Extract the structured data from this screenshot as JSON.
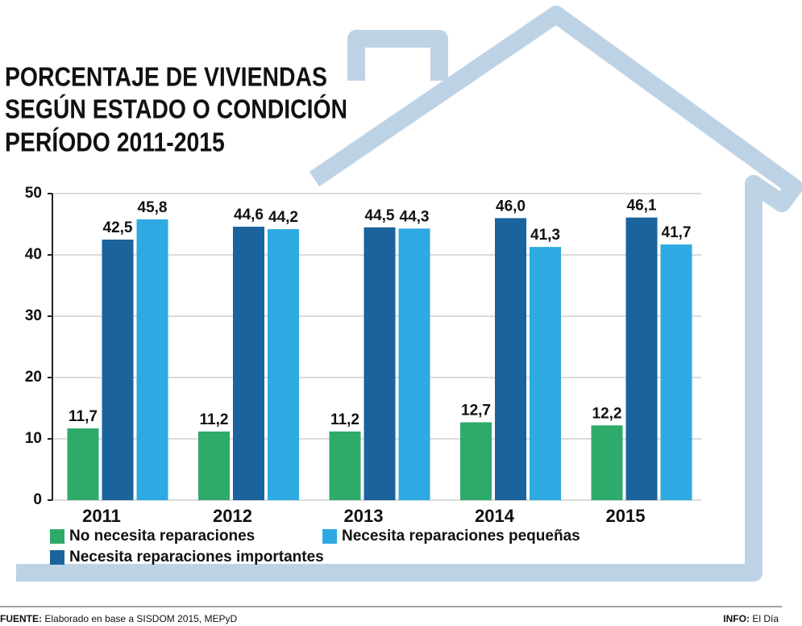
{
  "chart_data": {
    "type": "bar",
    "title": [
      "PORCENTAJE DE VIVIENDAS",
      "SEGÚN ESTADO O CONDICIÓN",
      "PERÍODO 2011-2015"
    ],
    "categories": [
      "2011",
      "2012",
      "2013",
      "2014",
      "2015"
    ],
    "series": [
      {
        "name": "No necesita reparaciones",
        "color": "#2eaa6a",
        "values": [
          11.7,
          11.2,
          11.2,
          12.7,
          12.2
        ],
        "value_labels": [
          "11,7",
          "11,2",
          "11,2",
          "12,7",
          "12,2"
        ]
      },
      {
        "name": "Necesita reparaciones importantes",
        "color": "#1b639c",
        "values": [
          42.5,
          44.6,
          44.5,
          46.0,
          46.1
        ],
        "value_labels": [
          "42,5",
          "44,6",
          "44,5",
          "46,0",
          "46,1"
        ]
      },
      {
        "name": "Necesita reparaciones pequeñas",
        "color": "#2ea9e1",
        "values": [
          45.8,
          44.2,
          44.3,
          41.3,
          41.7
        ],
        "value_labels": [
          "45,8",
          "44,2",
          "44,3",
          "41,3",
          "41,7"
        ]
      }
    ],
    "ylim": [
      0,
      50
    ],
    "yticks": [
      0,
      10,
      20,
      30,
      40,
      50
    ],
    "grid": true,
    "source": {
      "label": "FUENTE:",
      "text": "Elaborado en base a SISDOM 2015, MEPyD"
    },
    "credit": {
      "label": "INFO:",
      "text": "El Día"
    }
  }
}
